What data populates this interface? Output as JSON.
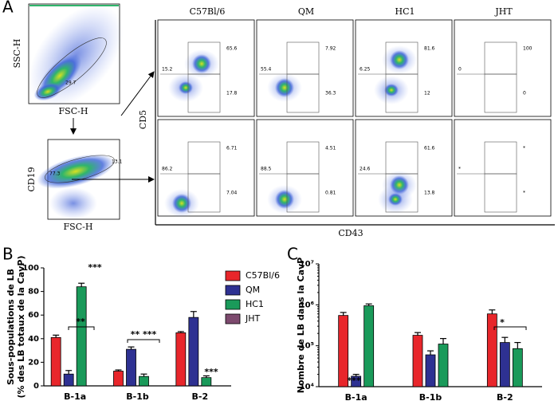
{
  "panel_labels": [
    "A",
    "B",
    "C"
  ],
  "gating": {
    "first": {
      "y_label": "SSC-H",
      "x_label": "FSC-H",
      "gate": "29.7"
    },
    "second": {
      "y_label": "CD19",
      "x_label": "FSC-H",
      "gates": [
        "77.3",
        "13.1"
      ]
    }
  },
  "flow": {
    "columns": [
      "C57Bl/6",
      "QM",
      "HC1",
      "JHT"
    ],
    "y_label": "CD5",
    "x_label": "CD43",
    "rows": [
      [
        [
          "15.2",
          "65.6",
          "17.8"
        ],
        [
          "55.4",
          "7.92",
          "36.3"
        ],
        [
          "6.25",
          "81.6",
          "12"
        ],
        [
          "0",
          "100",
          "0"
        ]
      ],
      [
        [
          "86.2",
          "6.71",
          "7.04"
        ],
        [
          "88.5",
          "4.51",
          "0.81"
        ],
        [
          "24.6",
          "61.6",
          "13.8"
        ],
        [
          "*",
          "*",
          "*"
        ]
      ]
    ]
  },
  "chart_data": [
    {
      "type": "bar",
      "y_label": [
        "Sous-populations de LB",
        "(% des LB totaux de la CavP)"
      ],
      "categories": [
        "B-1a",
        "B-1b",
        "B-2"
      ],
      "series": [
        {
          "name": "C57Bl/6",
          "color": "#e8262b",
          "values": [
            41,
            12.5,
            45
          ],
          "errors": [
            2,
            1,
            1
          ]
        },
        {
          "name": "QM",
          "color": "#2e3192",
          "values": [
            10,
            31,
            58
          ],
          "errors": [
            3,
            2,
            5
          ]
        },
        {
          "name": "HC1",
          "color": "#1a9a5a",
          "values": [
            84,
            8,
            7
          ],
          "errors": [
            3,
            2,
            1.5
          ]
        },
        {
          "name": "JHT",
          "color": "#7d4a6e",
          "values": [
            null,
            null,
            null
          ]
        }
      ],
      "ylim": [
        0,
        100
      ],
      "yticks": [
        0,
        20,
        40,
        60,
        80,
        100
      ],
      "annotations": [
        "**",
        "** ***",
        "***",
        "***"
      ]
    },
    {
      "type": "bar",
      "log_scale": true,
      "y_label": [
        "Nombre de LB dans la CavP"
      ],
      "categories": [
        "B-1a",
        "B-1b",
        "B-2"
      ],
      "series": [
        {
          "color": "#e8262b",
          "values": [
            550000,
            180000,
            600000
          ],
          "errors": [
            100000,
            30000,
            150000
          ]
        },
        {
          "color": "#2e3192",
          "values": [
            18000,
            60000,
            120000
          ],
          "errors": [
            2000,
            15000,
            40000
          ]
        },
        {
          "color": "#1a9a5a",
          "values": [
            950000,
            110000,
            85000
          ],
          "errors": [
            100000,
            40000,
            35000
          ]
        }
      ],
      "ylim": [
        10000,
        10000000
      ],
      "yticks": [
        {
          "value": 10000,
          "label": "10⁴"
        },
        {
          "value": 100000,
          "label": "10⁵"
        },
        {
          "value": 1000000,
          "label": "10⁶"
        },
        {
          "value": 10000000,
          "label": "10⁷"
        }
      ],
      "annotations": [
        "***",
        "*"
      ]
    }
  ]
}
